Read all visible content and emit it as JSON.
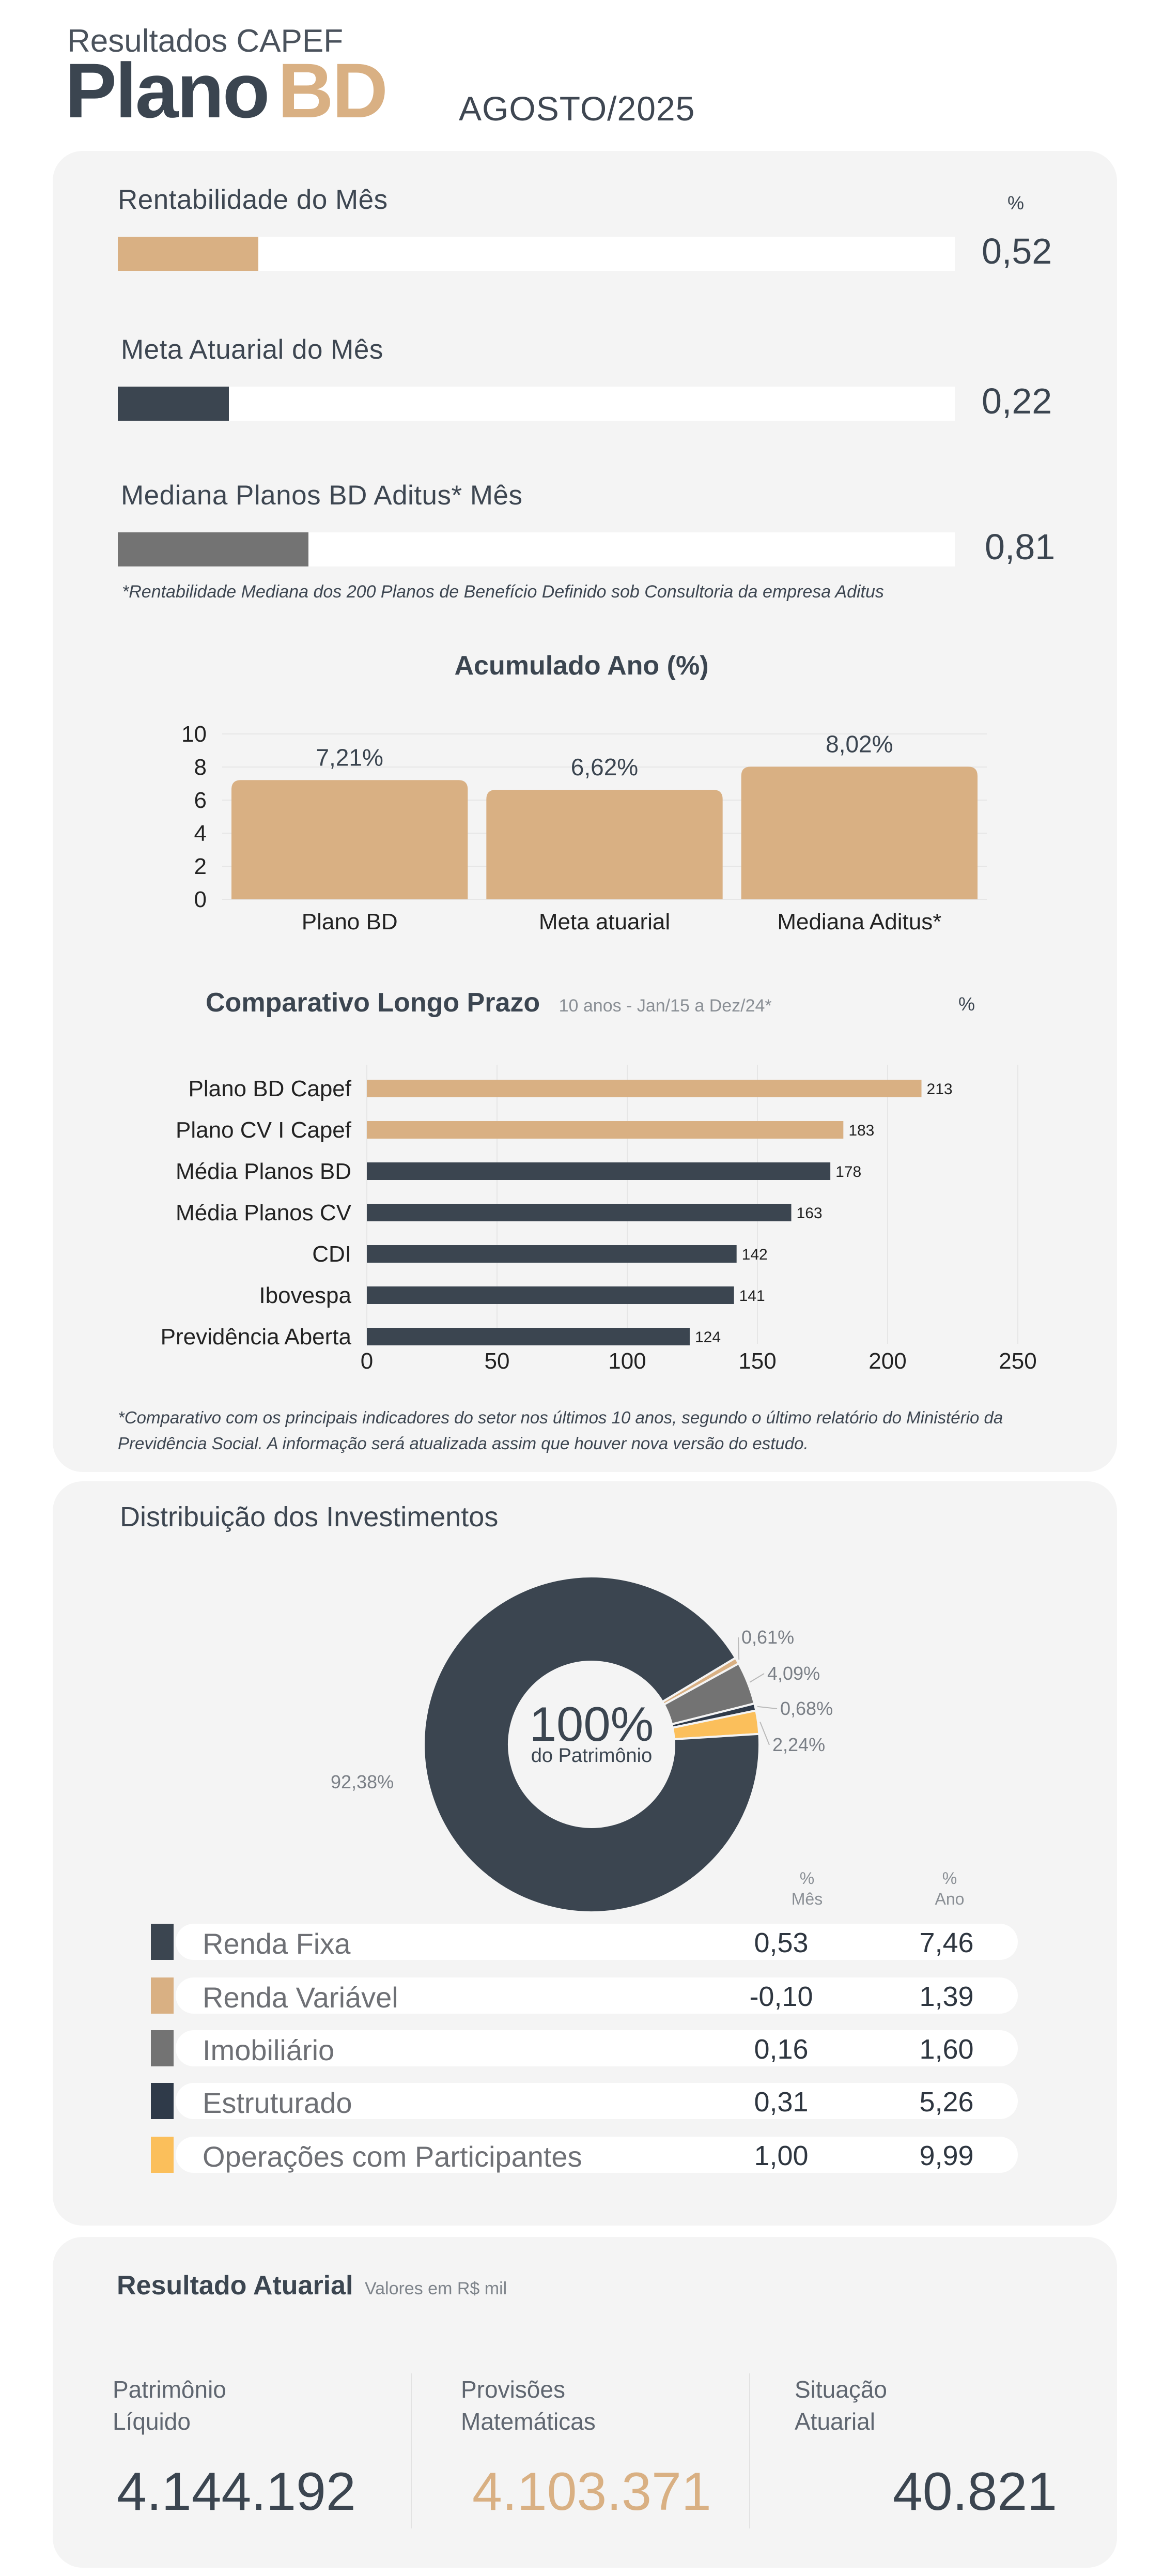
{
  "header": {
    "subtitle": "Resultados CAPEF",
    "plan_word": "Plano",
    "plan_code": "BD",
    "period": "AGOSTO/2025"
  },
  "colors": {
    "gold": "#d9b083",
    "navy": "#3b4550",
    "gray": "#737373",
    "dark": "#2f3a49",
    "yellow": "#fbbf5b",
    "card": "#f4f4f4"
  },
  "monthly": {
    "unit": "%",
    "bars": [
      {
        "label": "Rentabilidade do Mês",
        "value": "0,52",
        "fill": 0.168,
        "color": "#d9b083"
      },
      {
        "label": "Meta Atuarial do Mês",
        "value": "0,22",
        "fill": 0.133,
        "color": "#3b4550"
      },
      {
        "label": "Mediana Planos BD Aditus* Mês",
        "value": "0,81",
        "fill": 0.228,
        "color": "#737373"
      }
    ],
    "note": "*Rentabilidade Mediana dos 200 Planos de Benefício Definido sob Consultoria da empresa Aditus"
  },
  "chart_data": [
    {
      "type": "bar",
      "title": "Acumulado Ano (%)",
      "categories": [
        "Plano BD",
        "Meta atuarial",
        "Mediana Aditus*"
      ],
      "values": [
        7.21,
        6.62,
        8.02
      ],
      "data_labels": [
        "7,21%",
        "6,62%",
        "8,02%"
      ],
      "ylim": [
        0,
        10
      ],
      "yticks": [
        0,
        2,
        4,
        6,
        8,
        10
      ],
      "color": "#d9b083",
      "grid": true
    },
    {
      "type": "bar",
      "orientation": "horizontal",
      "title": "Comparativo Longo Prazo",
      "subtitle": "10 anos - Jan/15 a Dez/24*",
      "unit": "%",
      "categories": [
        "Plano BD Capef",
        "Plano CV I Capef",
        "Média Planos BD",
        "Média Planos CV",
        "CDI",
        "Ibovespa",
        "Previdência Aberta"
      ],
      "values": [
        213,
        183,
        178,
        163,
        142,
        141,
        124
      ],
      "colors": [
        "#d9b083",
        "#d9b083",
        "#3b4550",
        "#3b4550",
        "#3b4550",
        "#3b4550",
        "#3b4550"
      ],
      "xlim": [
        0,
        250
      ],
      "xticks": [
        0,
        50,
        100,
        150,
        200,
        250
      ],
      "grid": true,
      "note": "*Comparativo com os principais indicadores do setor nos últimos 10 anos, segundo o último relatório do Ministério da Previdência Social. A informação será atualizada assim que houver nova versão do estudo."
    },
    {
      "type": "pie",
      "title": "Distribuição dos Investimentos",
      "center_value": "100%",
      "center_label": "do Patrimônio",
      "values": [
        92.38,
        0.61,
        4.09,
        0.68,
        2.24
      ],
      "data_labels": [
        "92,38%",
        "0,61%",
        "4,09%",
        "0,68%",
        "2,24%"
      ],
      "colors": [
        "#3b4550",
        "#d9b083",
        "#737373",
        "#2f3a49",
        "#fbbf5b"
      ]
    }
  ],
  "distribution": {
    "col_month": [
      "%",
      "Mês"
    ],
    "col_year": [
      "%",
      "Ano"
    ],
    "rows": [
      {
        "name": "Renda Fixa",
        "month": "0,53",
        "year": "7,46",
        "color": "#3b4550"
      },
      {
        "name": "Renda Variável",
        "month": "-0,10",
        "year": "1,39",
        "color": "#d9b083"
      },
      {
        "name": "Imobiliário",
        "month": "0,16",
        "year": "1,60",
        "color": "#737373"
      },
      {
        "name": "Estruturado",
        "month": "0,31",
        "year": "5,26",
        "color": "#2f3a49"
      },
      {
        "name": "Operações com Participantes",
        "month": "1,00",
        "year": "9,99",
        "color": "#fbbf5b"
      }
    ]
  },
  "actuarial": {
    "title": "Resultado Atuarial",
    "subtitle": "Valores em R$ mil",
    "kpis": [
      {
        "label_1": "Patrimônio",
        "label_2": "Líquido",
        "value": "4.144.192",
        "color": "#3b4550"
      },
      {
        "label_1": "Provisões",
        "label_2": "Matemáticas",
        "value": "4.103.371",
        "color": "#d9b083"
      },
      {
        "label_1": "Situação",
        "label_2": "Atuarial",
        "value": "40.821",
        "color": "#3b4550"
      }
    ]
  }
}
